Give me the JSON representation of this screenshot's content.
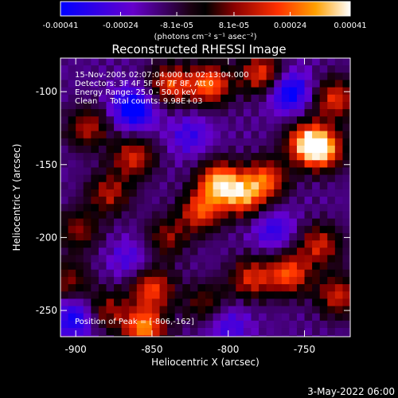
{
  "chart_data": {
    "type": "heatmap",
    "title": "Reconstructed RHESSI Image",
    "xlabel": "Heliocentric X (arcsec)",
    "ylabel": "Heliocentric Y (arcsec)",
    "xlim": [
      -910,
      -720
    ],
    "ylim": [
      -268,
      -77
    ],
    "x_ticks": [
      -900,
      -850,
      -800,
      -750
    ],
    "x_tick_labels": [
      "-900",
      "-850",
      "-800",
      "-750"
    ],
    "y_ticks": [
      -250,
      -200,
      -150,
      -100
    ],
    "y_tick_labels": [
      "-250",
      "-200",
      "-150",
      "-100"
    ],
    "grid": false,
    "colorbar": {
      "orientation": "horizontal",
      "position": "top",
      "range": [
        -0.00041,
        0.00041
      ],
      "ticks": [
        -0.00041,
        -0.00024,
        -8.1e-05,
        8.1e-05,
        0.00024,
        0.00041
      ],
      "tick_labels": [
        "-0.00041",
        "-0.00024",
        "-8.1e-05",
        "8.1e-05",
        "0.00024",
        "0.00041"
      ],
      "unit_label": "(photons cm⁻² s⁻¹ asec⁻²)"
    },
    "annotations": [
      "15-Nov-2005 02:07:04.000 to 02:13:04.000",
      "Detectors: 3F 4F 5F 6F 7F 8F, Att 0",
      "Energy Range: 25.0 - 50.0 keV",
      "Clean     Total counts: 9.98E+03"
    ],
    "peak_label": "Position of Peak = [-806,-162]",
    "peak": {
      "x": -806,
      "y": -162
    },
    "blobs": [
      {
        "x": -838,
        "y": -95,
        "v": 0.0003
      },
      {
        "x": -812,
        "y": -95,
        "v": 0.00035
      },
      {
        "x": -778,
        "y": -88,
        "v": 0.0003
      },
      {
        "x": -730,
        "y": -105,
        "v": 0.00028
      },
      {
        "x": -748,
        "y": -135,
        "v": 0.00038
      },
      {
        "x": -738,
        "y": -140,
        "v": 0.00035
      },
      {
        "x": -892,
        "y": -125,
        "v": 0.00022
      },
      {
        "x": -862,
        "y": -145,
        "v": 0.00026
      },
      {
        "x": -806,
        "y": -162,
        "v": 0.00041
      },
      {
        "x": -790,
        "y": -172,
        "v": 0.00033
      },
      {
        "x": -818,
        "y": -182,
        "v": 0.0003
      },
      {
        "x": -775,
        "y": -160,
        "v": 0.0003
      },
      {
        "x": -878,
        "y": -170,
        "v": 0.00022
      },
      {
        "x": -898,
        "y": -195,
        "v": 0.00018
      },
      {
        "x": -840,
        "y": -200,
        "v": 0.00018
      },
      {
        "x": -740,
        "y": -205,
        "v": 0.00025
      },
      {
        "x": -760,
        "y": -225,
        "v": 0.00032
      },
      {
        "x": -785,
        "y": -228,
        "v": 0.00026
      },
      {
        "x": -728,
        "y": -240,
        "v": 0.00025
      },
      {
        "x": -850,
        "y": -235,
        "v": 0.0003
      },
      {
        "x": -855,
        "y": -262,
        "v": 0.00038
      },
      {
        "x": -880,
        "y": -250,
        "v": 0.0002
      },
      {
        "x": -905,
        "y": -230,
        "v": 0.00018
      },
      {
        "x": -815,
        "y": -245,
        "v": 0.00016
      },
      {
        "x": -862,
        "y": -112,
        "v": -0.00036
      },
      {
        "x": -760,
        "y": -100,
        "v": -0.00034
      },
      {
        "x": -900,
        "y": -255,
        "v": -0.0003
      },
      {
        "x": -825,
        "y": -130,
        "v": -0.0002
      },
      {
        "x": -770,
        "y": -195,
        "v": -0.00022
      },
      {
        "x": -800,
        "y": -260,
        "v": -0.0002
      },
      {
        "x": -865,
        "y": -215,
        "v": -0.00018
      }
    ]
  },
  "footer": {
    "date": "3-May-2022 06:00"
  }
}
